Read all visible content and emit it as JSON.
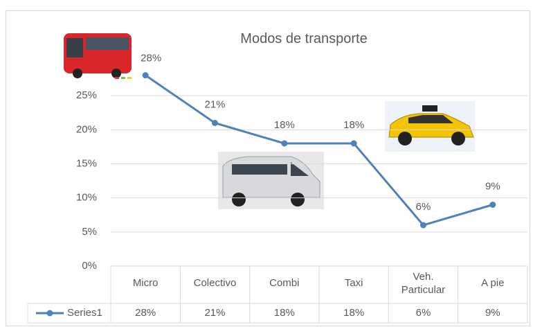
{
  "chart_data": {
    "type": "line",
    "title": "Modos de transporte",
    "categories": [
      "Micro",
      "Colectivo",
      "Combi",
      "Taxi",
      "Veh. Particular",
      "A pie"
    ],
    "series": [
      {
        "name": "Series1",
        "color": "#4f81bd",
        "values": [
          28,
          21,
          18,
          18,
          6,
          9
        ],
        "value_labels": [
          "28%",
          "21%",
          "18%",
          "18%",
          "6%",
          "9%"
        ]
      }
    ],
    "ylim": [
      0,
      30
    ],
    "yticks": [
      {
        "value": 0,
        "label": "0%"
      },
      {
        "value": 5,
        "label": "5%"
      },
      {
        "value": 10,
        "label": "10%"
      },
      {
        "value": 15,
        "label": "15%"
      },
      {
        "value": 20,
        "label": "20%"
      },
      {
        "value": 25,
        "label": "25%"
      }
    ],
    "grid": true,
    "data_table": true
  }
}
